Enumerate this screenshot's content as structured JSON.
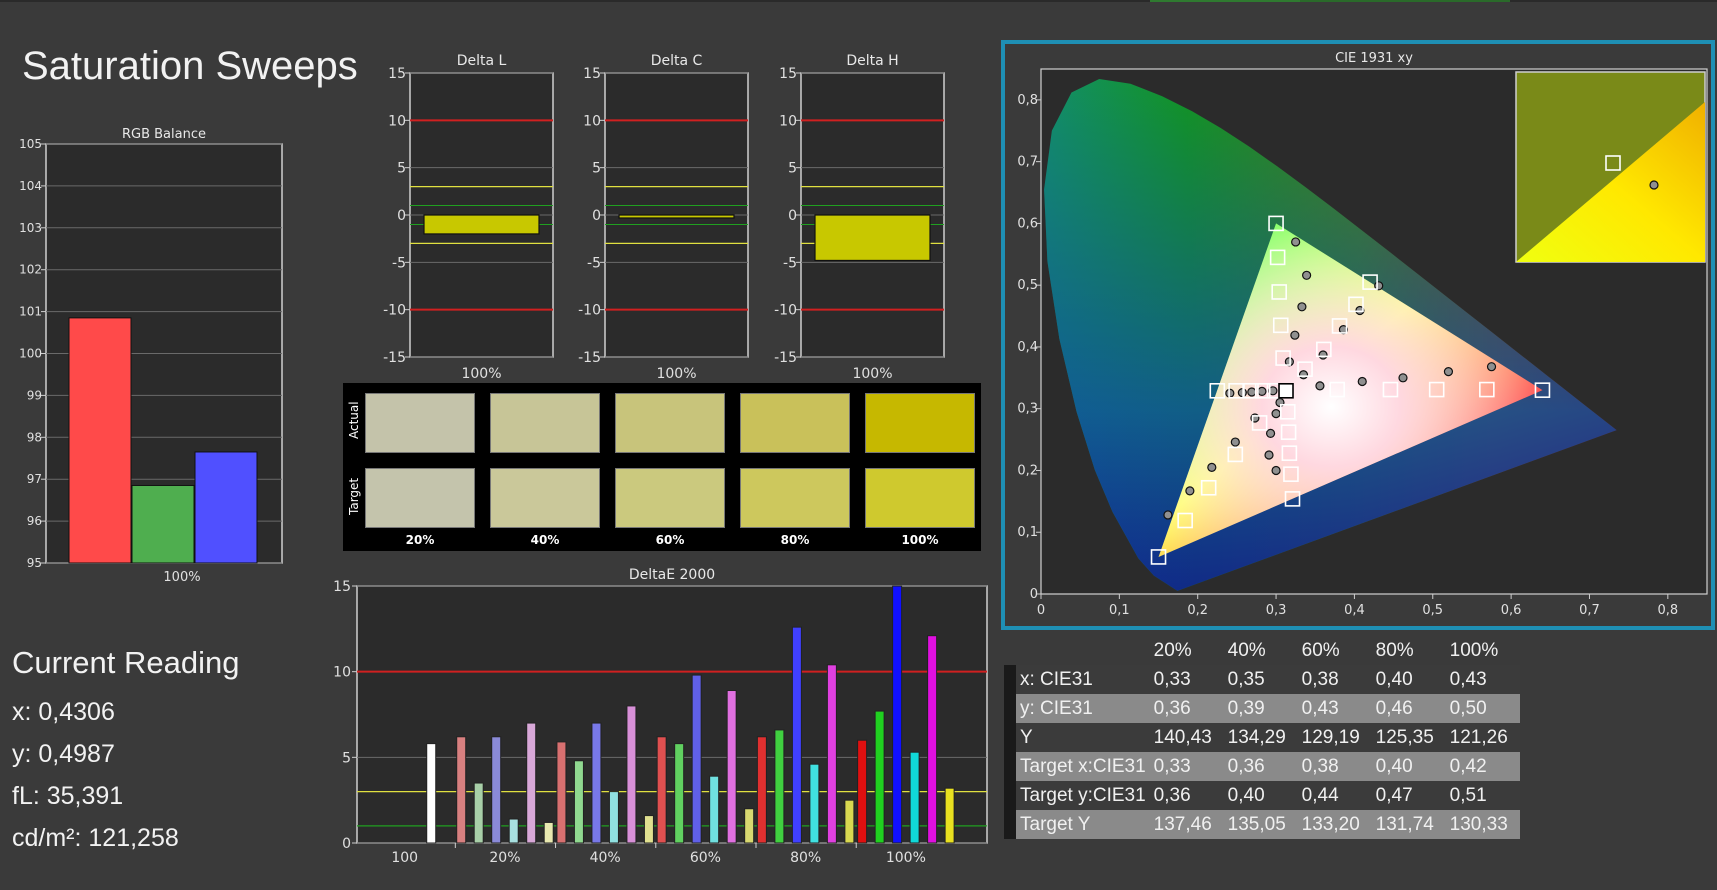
{
  "title": "Saturation Sweeps",
  "colors": {
    "background": "#3a3a3a",
    "plot_bg": "#2b2b2b",
    "grid": "#6a6a6a",
    "red_limit": "#d02020",
    "yellow_limit": "#e0e040",
    "green_limit": "#20a020",
    "highlight_frame": "#1e8fb4"
  },
  "current_reading": {
    "title": "Current Reading",
    "x": "x: 0,4306",
    "y": "y: 0,4987",
    "fl": "fL: 35,391",
    "cdm2": "cd/m²: 121,258"
  },
  "swatches": {
    "row_labels": [
      "Actual",
      "Target"
    ],
    "labels": [
      "20%",
      "40%",
      "60%",
      "80%",
      "100%"
    ],
    "actual_colors": [
      "#c4c3aa",
      "#c7c597",
      "#c8c47b",
      "#c9c15a",
      "#c6b800"
    ],
    "target_colors": [
      "#c4c4ac",
      "#cac89a",
      "#cbc97e",
      "#cdc85d",
      "#cfc92e"
    ]
  },
  "table": {
    "headers": [
      "",
      "20%",
      "40%",
      "60%",
      "80%",
      "100%"
    ],
    "rows": [
      {
        "label": "x: CIE31",
        "values": [
          "0,33",
          "0,35",
          "0,38",
          "0,40",
          "0,43"
        ]
      },
      {
        "label": "y: CIE31",
        "values": [
          "0,36",
          "0,39",
          "0,43",
          "0,46",
          "0,50"
        ]
      },
      {
        "label": "Y",
        "values": [
          "140,43",
          "134,29",
          "129,19",
          "125,35",
          "121,26"
        ]
      },
      {
        "label": "Target x:CIE31",
        "values": [
          "0,33",
          "0,36",
          "0,38",
          "0,40",
          "0,42"
        ]
      },
      {
        "label": "Target y:CIE31",
        "values": [
          "0,36",
          "0,40",
          "0,44",
          "0,47",
          "0,51"
        ]
      },
      {
        "label": "Target Y",
        "values": [
          "137,46",
          "135,05",
          "133,20",
          "131,74",
          "130,33"
        ]
      }
    ]
  },
  "chart_data": [
    {
      "id": "rgb",
      "type": "bar",
      "title": "RGB Balance",
      "ylim": [
        95,
        105
      ],
      "yticks": [
        "95",
        "96",
        "97",
        "98",
        "99",
        "100",
        "101",
        "102",
        "103",
        "104",
        "105"
      ],
      "categories": [
        "100%"
      ],
      "series": [
        {
          "color": "#ff4a4a",
          "values": [
            100.85
          ]
        },
        {
          "color": "#4fae4f",
          "values": [
            96.85
          ]
        },
        {
          "color": "#5050ff",
          "values": [
            97.65
          ]
        }
      ]
    },
    {
      "id": "dl",
      "type": "bar",
      "title": "Delta L",
      "ylim": [
        -15,
        15
      ],
      "yticks": [
        "-15",
        "-10",
        "-5",
        "0",
        "5",
        "10",
        "15"
      ],
      "categories": [
        "100%"
      ],
      "values": [
        -2.0
      ]
    },
    {
      "id": "dc",
      "type": "bar",
      "title": "Delta C",
      "ylim": [
        -15,
        15
      ],
      "yticks": [
        "-15",
        "-10",
        "-5",
        "0",
        "5",
        "10",
        "15"
      ],
      "categories": [
        "100%"
      ],
      "values": [
        -0.3
      ]
    },
    {
      "id": "dh",
      "type": "bar",
      "title": "Delta H",
      "ylim": [
        -15,
        15
      ],
      "yticks": [
        "-15",
        "-10",
        "-5",
        "0",
        "5",
        "10",
        "15"
      ],
      "categories": [
        "100%"
      ],
      "values": [
        -4.8
      ]
    },
    {
      "id": "de",
      "type": "bar",
      "title": "DeltaE 2000",
      "ylim": [
        0,
        15
      ],
      "yticks": [
        "0",
        "5",
        "10",
        "15"
      ],
      "limits": [
        10,
        3,
        1
      ],
      "groups": [
        {
          "label": "100",
          "bars": [
            {
              "color": "#ffffff",
              "value": 5.8
            }
          ]
        },
        {
          "label": "20%",
          "bars": [
            {
              "color": "#d88080",
              "value": 6.2
            },
            {
              "color": "#a8cfa8",
              "value": 3.5
            },
            {
              "color": "#8a8ad8",
              "value": 6.2
            },
            {
              "color": "#a8e0e0",
              "value": 1.4
            },
            {
              "color": "#d8a8d8",
              "value": 7.0
            },
            {
              "color": "#e8e8b0",
              "value": 1.2
            }
          ]
        },
        {
          "label": "40%",
          "bars": [
            {
              "color": "#d87070",
              "value": 5.9
            },
            {
              "color": "#90d890",
              "value": 4.8
            },
            {
              "color": "#7878e8",
              "value": 7.0
            },
            {
              "color": "#90e0e0",
              "value": 3.0
            },
            {
              "color": "#d890d8",
              "value": 8.0
            },
            {
              "color": "#e0e090",
              "value": 1.6
            }
          ]
        },
        {
          "label": "60%",
          "bars": [
            {
              "color": "#e05050",
              "value": 6.2
            },
            {
              "color": "#60d060",
              "value": 5.8
            },
            {
              "color": "#6060e8",
              "value": 9.8
            },
            {
              "color": "#70e0e0",
              "value": 3.9
            },
            {
              "color": "#e070e0",
              "value": 8.9
            },
            {
              "color": "#d8d870",
              "value": 2.0
            }
          ]
        },
        {
          "label": "80%",
          "bars": [
            {
              "color": "#e03030",
              "value": 6.2
            },
            {
              "color": "#40d040",
              "value": 6.6
            },
            {
              "color": "#4040ff",
              "value": 12.6
            },
            {
              "color": "#40e0e0",
              "value": 4.6
            },
            {
              "color": "#e040e0",
              "value": 10.4
            },
            {
              "color": "#d8d850",
              "value": 2.5
            }
          ]
        },
        {
          "label": "100%",
          "bars": [
            {
              "color": "#e01010",
              "value": 6.0
            },
            {
              "color": "#20d020",
              "value": 7.7
            },
            {
              "color": "#1010ff",
              "value": 15.0
            },
            {
              "color": "#10d8d8",
              "value": 5.3
            },
            {
              "color": "#e010e0",
              "value": 12.1
            },
            {
              "color": "#e8e020",
              "value": 3.2
            }
          ]
        }
      ]
    },
    {
      "id": "cie",
      "type": "scatter",
      "title": "CIE 1931 xy",
      "xlim": [
        0,
        0.85
      ],
      "ylim": [
        0,
        0.85
      ],
      "xticks": [
        "0",
        "0,1",
        "0,2",
        "0,3",
        "0,4",
        "0,5",
        "0,6",
        "0,7",
        "0,8"
      ],
      "yticks": [
        "0",
        "0,1",
        "0,2",
        "0,3",
        "0,4",
        "0,5",
        "0,6",
        "0,7",
        "0,8"
      ],
      "gamut": [
        [
          0.64,
          0.33
        ],
        [
          0.3,
          0.6
        ],
        [
          0.15,
          0.06
        ]
      ],
      "white_point": [
        0.3127,
        0.329
      ],
      "targets": [
        [
          0.64,
          0.33
        ],
        [
          0.569,
          0.331
        ],
        [
          0.505,
          0.331
        ],
        [
          0.446,
          0.331
        ],
        [
          0.378,
          0.331
        ],
        [
          0.3,
          0.6
        ],
        [
          0.302,
          0.545
        ],
        [
          0.304,
          0.489
        ],
        [
          0.306,
          0.435
        ],
        [
          0.309,
          0.382
        ],
        [
          0.15,
          0.06
        ],
        [
          0.184,
          0.119
        ],
        [
          0.214,
          0.172
        ],
        [
          0.248,
          0.226
        ],
        [
          0.279,
          0.277
        ],
        [
          0.225,
          0.329
        ],
        [
          0.249,
          0.329
        ],
        [
          0.268,
          0.329
        ],
        [
          0.283,
          0.329
        ],
        [
          0.298,
          0.329
        ],
        [
          0.42,
          0.505
        ],
        [
          0.402,
          0.469
        ],
        [
          0.381,
          0.434
        ],
        [
          0.361,
          0.396
        ],
        [
          0.337,
          0.364
        ],
        [
          0.321,
          0.154
        ],
        [
          0.319,
          0.194
        ],
        [
          0.317,
          0.228
        ],
        [
          0.316,
          0.262
        ],
        [
          0.315,
          0.295
        ]
      ],
      "measured": [
        [
          0.575,
          0.368
        ],
        [
          0.52,
          0.36
        ],
        [
          0.462,
          0.35
        ],
        [
          0.41,
          0.344
        ],
        [
          0.356,
          0.337
        ],
        [
          0.325,
          0.57
        ],
        [
          0.339,
          0.516
        ],
        [
          0.333,
          0.465
        ],
        [
          0.324,
          0.419
        ],
        [
          0.317,
          0.376
        ],
        [
          0.162,
          0.128
        ],
        [
          0.19,
          0.167
        ],
        [
          0.218,
          0.205
        ],
        [
          0.248,
          0.246
        ],
        [
          0.273,
          0.285
        ],
        [
          0.241,
          0.325
        ],
        [
          0.257,
          0.326
        ],
        [
          0.269,
          0.327
        ],
        [
          0.282,
          0.328
        ],
        [
          0.296,
          0.329
        ],
        [
          0.431,
          0.499
        ],
        [
          0.407,
          0.459
        ],
        [
          0.386,
          0.428
        ],
        [
          0.36,
          0.387
        ],
        [
          0.335,
          0.355
        ],
        [
          0.3,
          0.2
        ],
        [
          0.291,
          0.225
        ],
        [
          0.293,
          0.26
        ],
        [
          0.3,
          0.292
        ],
        [
          0.305,
          0.31
        ]
      ]
    }
  ]
}
